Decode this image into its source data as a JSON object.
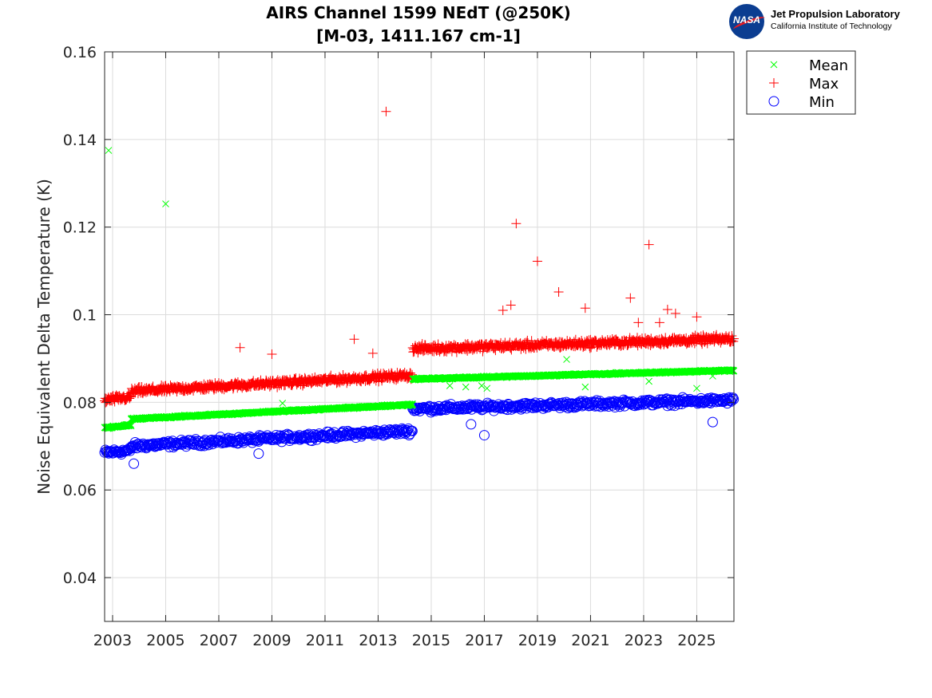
{
  "chart_data": {
    "type": "scatter",
    "title": [
      "AIRS Channel 1599 NEdT (@250K)",
      "[M-03, 1411.167 cm-1]"
    ],
    "xlabel": "",
    "ylabel": "Noise Equivalent Delta Temperature (K)",
    "xlim": [
      2002.7,
      2026.4
    ],
    "ylim": [
      0.03,
      0.16
    ],
    "xticks": [
      2003,
      2005,
      2007,
      2009,
      2011,
      2013,
      2015,
      2017,
      2019,
      2021,
      2023,
      2025
    ],
    "xtick_labels": [
      "2003",
      "2005",
      "2007",
      "2009",
      "2011",
      "2013",
      "2015",
      "2017",
      "2019",
      "2021",
      "2023",
      "2025"
    ],
    "yticks": [
      0.04,
      0.06,
      0.08,
      0.1,
      0.12,
      0.14,
      0.16
    ],
    "ytick_labels": [
      "0.04",
      "0.06",
      "0.08",
      "0.1",
      "0.12",
      "0.14",
      "0.16"
    ],
    "grid": true,
    "legend_position": "outside-top-right",
    "sampling_note": "",
    "series": [
      {
        "name": "Mean",
        "marker": "x",
        "color": "#00ff00",
        "segments": [
          {
            "x_start": 2002.7,
            "x_end": 2003.7,
            "y_start": 0.0742,
            "y_end": 0.0748,
            "noise": 0.0003,
            "step": 0.012
          },
          {
            "x_start": 2003.7,
            "x_end": 2014.3,
            "y_start": 0.0762,
            "y_end": 0.0795,
            "noise": 0.0003,
            "step": 0.012
          },
          {
            "x_start": 2014.3,
            "x_end": 2026.4,
            "y_start": 0.0853,
            "y_end": 0.0873,
            "noise": 0.0003,
            "step": 0.012
          }
        ],
        "outliers": [
          {
            "x": 2002.85,
            "y": 0.1375
          },
          {
            "x": 2005.0,
            "y": 0.1253
          },
          {
            "x": 2009.4,
            "y": 0.0798
          },
          {
            "x": 2015.7,
            "y": 0.0838
          },
          {
            "x": 2016.3,
            "y": 0.0835
          },
          {
            "x": 2016.9,
            "y": 0.0838
          },
          {
            "x": 2017.1,
            "y": 0.0832
          },
          {
            "x": 2020.1,
            "y": 0.0898
          },
          {
            "x": 2020.8,
            "y": 0.0835
          },
          {
            "x": 2023.2,
            "y": 0.0848
          },
          {
            "x": 2025.0,
            "y": 0.0832
          },
          {
            "x": 2025.6,
            "y": 0.086
          }
        ]
      },
      {
        "name": "Max",
        "marker": "+",
        "color": "#ff0000",
        "segments": [
          {
            "x_start": 2002.7,
            "x_end": 2003.7,
            "y_start": 0.0805,
            "y_end": 0.0812,
            "noise": 0.0012,
            "step": 0.02
          },
          {
            "x_start": 2003.7,
            "x_end": 2014.3,
            "y_start": 0.0825,
            "y_end": 0.0862,
            "noise": 0.0012,
            "step": 0.02
          },
          {
            "x_start": 2014.3,
            "x_end": 2026.4,
            "y_start": 0.0922,
            "y_end": 0.0945,
            "noise": 0.0013,
            "step": 0.02
          }
        ],
        "outliers": [
          {
            "x": 2007.8,
            "y": 0.0925
          },
          {
            "x": 2009.0,
            "y": 0.091
          },
          {
            "x": 2012.1,
            "y": 0.0944
          },
          {
            "x": 2012.8,
            "y": 0.0912
          },
          {
            "x": 2013.3,
            "y": 0.1464
          },
          {
            "x": 2017.7,
            "y": 0.101
          },
          {
            "x": 2018.0,
            "y": 0.1022
          },
          {
            "x": 2018.2,
            "y": 0.1208
          },
          {
            "x": 2019.0,
            "y": 0.1122
          },
          {
            "x": 2019.8,
            "y": 0.1052
          },
          {
            "x": 2020.8,
            "y": 0.1015
          },
          {
            "x": 2022.5,
            "y": 0.1038
          },
          {
            "x": 2022.8,
            "y": 0.0982
          },
          {
            "x": 2023.2,
            "y": 0.116
          },
          {
            "x": 2023.6,
            "y": 0.0982
          },
          {
            "x": 2023.9,
            "y": 0.1012
          },
          {
            "x": 2024.2,
            "y": 0.1003
          },
          {
            "x": 2025.0,
            "y": 0.0995
          }
        ]
      },
      {
        "name": "Min",
        "marker": "o",
        "color": "#0000ff",
        "segments": [
          {
            "x_start": 2002.7,
            "x_end": 2003.7,
            "y_start": 0.0685,
            "y_end": 0.069,
            "noise": 0.0011,
            "step": 0.03
          },
          {
            "x_start": 2003.7,
            "x_end": 2014.3,
            "y_start": 0.07,
            "y_end": 0.0735,
            "noise": 0.0011,
            "step": 0.03
          },
          {
            "x_start": 2014.3,
            "x_end": 2026.4,
            "y_start": 0.0785,
            "y_end": 0.0805,
            "noise": 0.0011,
            "step": 0.03
          }
        ],
        "outliers": [
          {
            "x": 2003.8,
            "y": 0.066
          },
          {
            "x": 2008.5,
            "y": 0.0683
          },
          {
            "x": 2016.5,
            "y": 0.075
          },
          {
            "x": 2017.0,
            "y": 0.0725
          },
          {
            "x": 2025.6,
            "y": 0.0755
          }
        ]
      }
    ]
  },
  "logo": {
    "badge_text": "NASA",
    "line1": "Jet Propulsion Laboratory",
    "line2": "California Institute of Technology"
  }
}
